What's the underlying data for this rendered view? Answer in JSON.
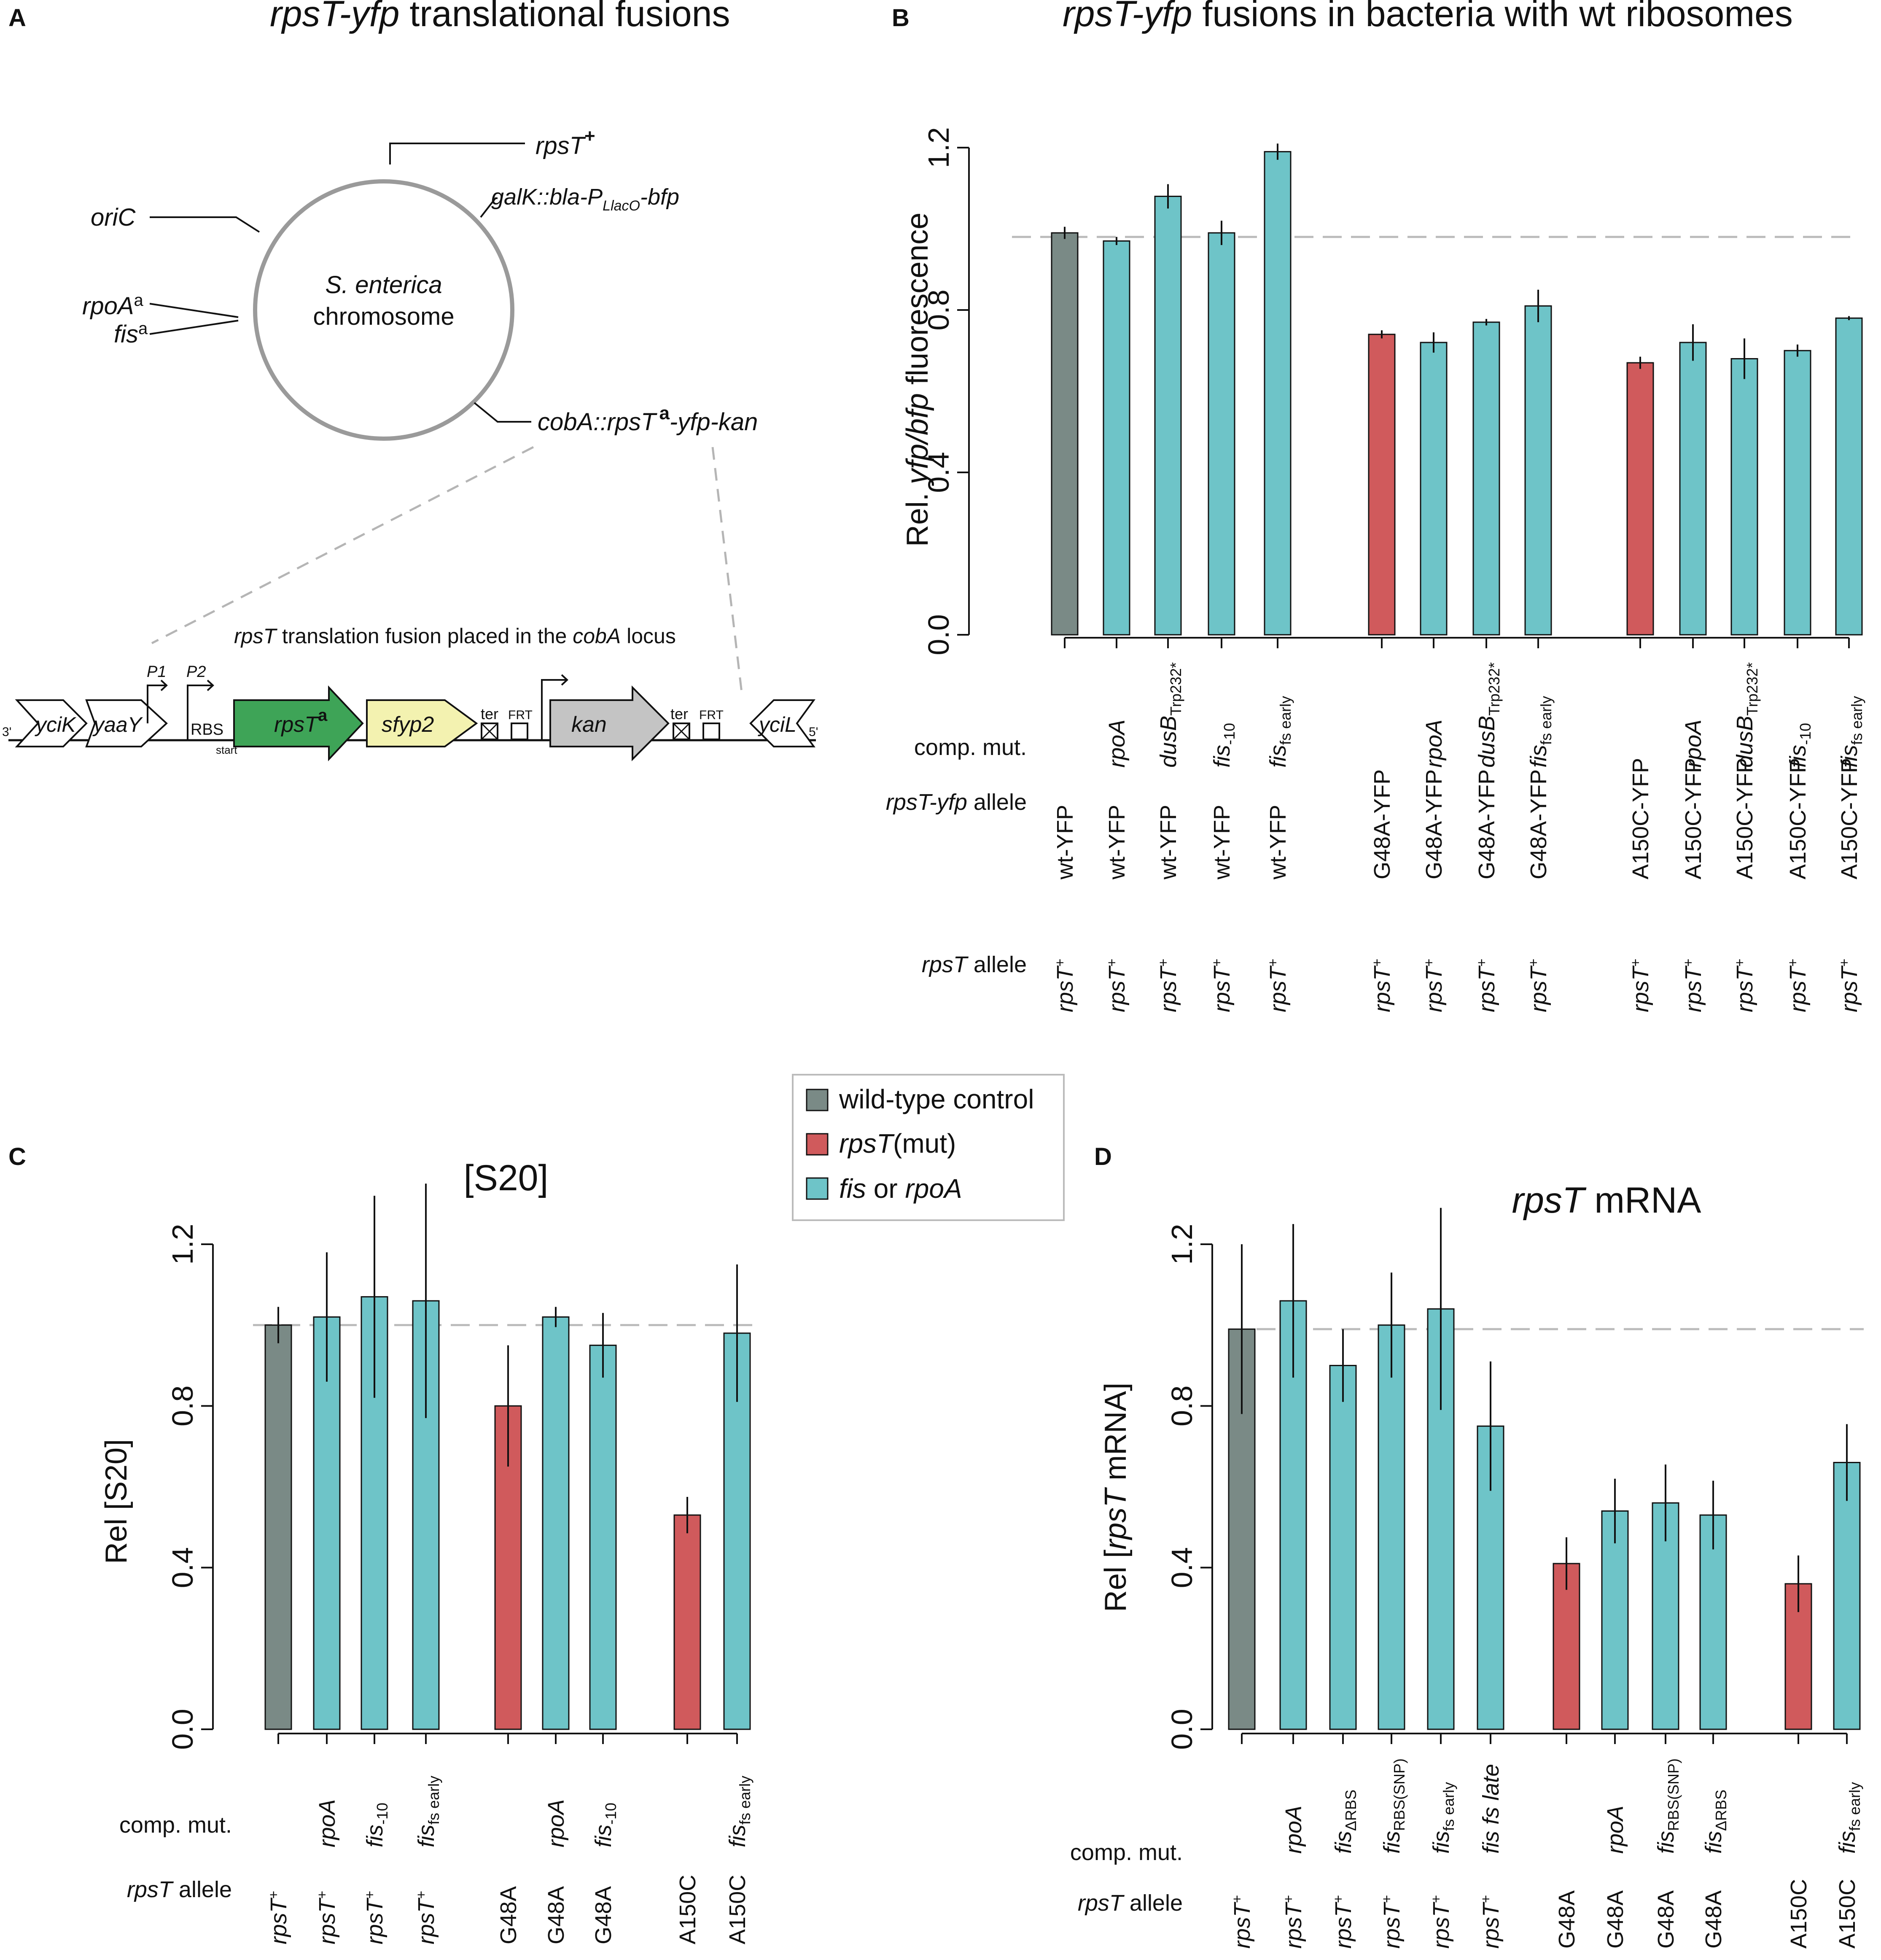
{
  "colors": {
    "wt": "#7a8a86",
    "mut": "#d05a5c",
    "comp": "#6ec4c8",
    "gene_green": "#3ea457",
    "gene_yellow": "#f3f2b0",
    "gene_grey": "#c4c4c4",
    "ref_line": "#bbbbbb"
  },
  "legend": [
    {
      "label": "wild-type control",
      "color": "wt"
    },
    {
      "label_it": "rpsT",
      "label_rest": "(mut)",
      "color": "mut"
    },
    {
      "label_it": "fis",
      "label_mid": " or ",
      "label_it2": "rpoA",
      "color": "comp"
    }
  ],
  "panel_a": {
    "letter": "A",
    "title_it": "rpsT-yfp",
    "title_rest": " translational fusions",
    "circle_line1": "S. enterica",
    "circle_line2": "chromosome",
    "lbl_rpsT": "rpsT",
    "lbl_rpsT_sup": "+",
    "lbl_oriC": "oriC",
    "lbl_galK_1": "galK",
    "lbl_galK_2": "::bla-P",
    "lbl_galK_sub": "LlacO",
    "lbl_galK_3": "-bfp",
    "lbl_rpoA": "rpoA",
    "lbl_fis": "fis",
    "sup_a": "a",
    "lbl_cobA_1": "cobA",
    "lbl_cobA_2": "::rpsT",
    "lbl_cobA_3": "-yfp-kan",
    "locus_pre": "rpsT",
    "locus_mid": " translation fusion placed in the ",
    "locus_it": "cobA",
    "locus_post": " locus",
    "genes": {
      "yciK": "yciK",
      "yaaY": "yaaY",
      "rpsT": "rpsT",
      "sup": "a",
      "sfyp2": "sfyp2",
      "kan": "kan",
      "yciL": "yciL"
    },
    "P1": "P1",
    "P2": "P2",
    "RBS": "RBS",
    "start": "start",
    "ter": "ter",
    "FRT": "FRT",
    "three": "3'",
    "five": "5'"
  },
  "chart_data": [
    {
      "panel": "B",
      "type": "bar",
      "title_it": "rpsT-yfp",
      "title_rest": " fusions in bacteria with wt ribosomes",
      "ylabel_pre": "Rel. ",
      "ylabel_it": "yfp/bfp",
      "ylabel_post": " fluorescence",
      "ylim": [
        0,
        1.2
      ],
      "yticks": [
        "0.0",
        "0.4",
        "0.8",
        "1.2"
      ],
      "reference_line": 0.98,
      "row_labels": {
        "comp": "comp. mut.",
        "allele_it": "rpsT-yfp",
        "allele_rest": " allele",
        "rpsT_it": "rpsT",
        "rpsT_rest": " allele"
      },
      "bars": [
        {
          "value": 0.99,
          "err": 0.015,
          "group": "wt",
          "comp": "",
          "allele": "wt-YFP",
          "rpsT": "rpsT",
          "sup": "+"
        },
        {
          "value": 0.97,
          "err": 0.01,
          "group": "comp",
          "comp": "rpoA",
          "allele": "wt-YFP",
          "rpsT": "rpsT",
          "sup": "+"
        },
        {
          "value": 1.08,
          "err": 0.03,
          "group": "comp",
          "comp": "dusB",
          "comp_sub": "Trp232*",
          "allele": "wt-YFP",
          "rpsT": "rpsT",
          "sup": "+"
        },
        {
          "value": 0.99,
          "err": 0.03,
          "group": "comp",
          "comp": "fis",
          "comp_sub": "-10",
          "allele": "wt-YFP",
          "rpsT": "rpsT",
          "sup": "+"
        },
        {
          "value": 1.19,
          "err": 0.02,
          "group": "comp",
          "comp": "fis",
          "comp_sub": "fs early",
          "allele": "wt-YFP",
          "rpsT": "rpsT",
          "sup": "+"
        },
        {
          "value": 0.74,
          "err": 0.01,
          "group": "mut",
          "comp": "",
          "allele": "G48A-YFP",
          "rpsT": "rpsT",
          "sup": "+"
        },
        {
          "value": 0.72,
          "err": 0.025,
          "group": "comp",
          "comp": "rpoA",
          "allele": "G48A-YFP",
          "rpsT": "rpsT",
          "sup": "+"
        },
        {
          "value": 0.77,
          "err": 0.008,
          "group": "comp",
          "comp": "dusB",
          "comp_sub": "Trp232*",
          "allele": "G48A-YFP",
          "rpsT": "rpsT",
          "sup": "+"
        },
        {
          "value": 0.81,
          "err": 0.04,
          "group": "comp",
          "comp": "fis",
          "comp_sub": "fs early",
          "allele": "G48A-YFP",
          "rpsT": "rpsT",
          "sup": "+"
        },
        {
          "value": 0.67,
          "err": 0.015,
          "group": "mut",
          "comp": "",
          "allele": "A150C-YFP",
          "rpsT": "rpsT",
          "sup": "+"
        },
        {
          "value": 0.72,
          "err": 0.045,
          "group": "comp",
          "comp": "rpoA",
          "allele": "A150C-YFP",
          "rpsT": "rpsT",
          "sup": "+"
        },
        {
          "value": 0.68,
          "err": 0.05,
          "group": "comp",
          "comp": "dusB",
          "comp_sub": "Trp232*",
          "allele": "A150C-YFP",
          "rpsT": "rpsT",
          "sup": "+"
        },
        {
          "value": 0.7,
          "err": 0.015,
          "group": "comp",
          "comp": "fis",
          "comp_sub": "-10",
          "allele": "A150C-YFP",
          "rpsT": "rpsT",
          "sup": "+"
        },
        {
          "value": 0.78,
          "err": 0.005,
          "group": "comp",
          "comp": "fis",
          "comp_sub": "fs early",
          "allele": "A150C-YFP",
          "rpsT": "rpsT",
          "sup": "+"
        }
      ]
    },
    {
      "panel": "C",
      "type": "bar",
      "title": "[S20]",
      "ylabel": "Rel [S20]",
      "ylim": [
        0,
        1.2
      ],
      "yticks": [
        "0.0",
        "0.4",
        "0.8",
        "1.2"
      ],
      "reference_line": 1.0,
      "row_labels": {
        "comp": "comp. mut.",
        "rpsT_it": "rpsT",
        "rpsT_rest": " allele"
      },
      "bars": [
        {
          "value": 1.0,
          "err": 0.045,
          "group": "wt",
          "comp": "",
          "rpsT": "rpsT",
          "sup": "+"
        },
        {
          "value": 1.02,
          "err": 0.16,
          "group": "comp",
          "comp": "rpoA",
          "rpsT": "rpsT",
          "sup": "+"
        },
        {
          "value": 1.07,
          "err": 0.25,
          "group": "comp",
          "comp": "fis",
          "comp_sub": "-10",
          "rpsT": "rpsT",
          "sup": "+"
        },
        {
          "value": 1.06,
          "err": 0.29,
          "group": "comp",
          "comp": "fis",
          "comp_sub": "fs early",
          "rpsT": "rpsT",
          "sup": "+"
        },
        {
          "value": 0.8,
          "err": 0.15,
          "group": "mut",
          "comp": "",
          "rpsT": "G48A"
        },
        {
          "value": 1.02,
          "err": 0.025,
          "group": "comp",
          "comp": "rpoA",
          "rpsT": "G48A"
        },
        {
          "value": 0.95,
          "err": 0.08,
          "group": "comp",
          "comp": "fis",
          "comp_sub": "-10",
          "rpsT": "G48A"
        },
        {
          "value": 0.53,
          "err": 0.045,
          "group": "mut",
          "comp": "",
          "rpsT": "A150C"
        },
        {
          "value": 0.98,
          "err": 0.17,
          "group": "comp",
          "comp": "fis",
          "comp_sub": "fs early",
          "rpsT": "A150C"
        }
      ]
    },
    {
      "panel": "D",
      "type": "bar",
      "title_it": "rpsT",
      "title_rest": " mRNA",
      "ylabel_pre": "Rel [",
      "ylabel_it": "rpsT",
      "ylabel_post": " mRNA]",
      "ylim": [
        0,
        1.2
      ],
      "yticks": [
        "0.0",
        "0.4",
        "0.8",
        "1.2"
      ],
      "reference_line": 0.99,
      "row_labels": {
        "comp": "comp. mut.",
        "rpsT_it": "rpsT",
        "rpsT_rest": " allele"
      },
      "bars": [
        {
          "value": 0.99,
          "err": 0.21,
          "group": "wt",
          "comp": "",
          "rpsT": "rpsT",
          "sup": "+"
        },
        {
          "value": 1.06,
          "err": 0.19,
          "group": "comp",
          "comp": "rpoA",
          "rpsT": "rpsT",
          "sup": "+"
        },
        {
          "value": 0.9,
          "err": 0.09,
          "group": "comp",
          "comp": "fis",
          "comp_sub": "ΔRBS",
          "rpsT": "rpsT",
          "sup": "+"
        },
        {
          "value": 1.0,
          "err": 0.13,
          "group": "comp",
          "comp": "fis",
          "comp_sub": "RBS(SNP)",
          "rpsT": "rpsT",
          "sup": "+"
        },
        {
          "value": 1.04,
          "err": 0.25,
          "group": "comp",
          "comp": "fis",
          "comp_sub": "fs early",
          "rpsT": "rpsT",
          "sup": "+"
        },
        {
          "value": 0.75,
          "err": 0.16,
          "group": "comp",
          "comp": "fis",
          "comp_post": " fs late",
          "rpsT": "rpsT",
          "sup": "+"
        },
        {
          "value": 0.41,
          "err": 0.065,
          "group": "mut",
          "comp": "",
          "rpsT": "G48A"
        },
        {
          "value": 0.54,
          "err": 0.08,
          "group": "comp",
          "comp": "rpoA",
          "rpsT": "G48A"
        },
        {
          "value": 0.56,
          "err": 0.095,
          "group": "comp",
          "comp": "fis",
          "comp_sub": "RBS(SNP)",
          "rpsT": "G48A"
        },
        {
          "value": 0.53,
          "err": 0.085,
          "group": "comp",
          "comp": "fis",
          "comp_sub": "ΔRBS",
          "rpsT": "G48A"
        },
        {
          "value": 0.36,
          "err": 0.07,
          "group": "mut",
          "comp": "",
          "rpsT": "A150C"
        },
        {
          "value": 0.66,
          "err": 0.095,
          "group": "comp",
          "comp": "fis",
          "comp_sub": "fs early",
          "rpsT": "A150C"
        }
      ]
    }
  ]
}
